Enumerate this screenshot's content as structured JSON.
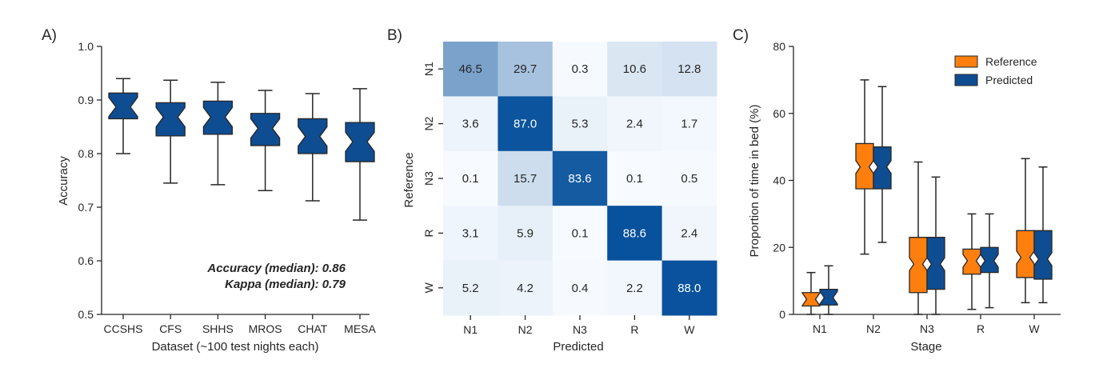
{
  "chart_data": [
    {
      "panel": "A)",
      "type": "box",
      "categories": [
        "CCSHS",
        "CFS",
        "SHHS",
        "MROS",
        "CHAT",
        "MESA"
      ],
      "xlabel": "Dataset (~100 test nights each)",
      "ylabel": "Accuracy",
      "ylim": [
        0.5,
        1.0
      ],
      "yticks": [
        "0.5",
        "0.6",
        "0.7",
        "0.8",
        "0.9",
        "1.0"
      ],
      "color": "#0f4d92",
      "boxes": [
        {
          "name": "CCSHS",
          "whisker_low": 0.8,
          "q1": 0.865,
          "median": 0.887,
          "q3": 0.913,
          "whisker_high": 0.94
        },
        {
          "name": "CFS",
          "whisker_low": 0.745,
          "q1": 0.833,
          "median": 0.868,
          "q3": 0.895,
          "whisker_high": 0.937
        },
        {
          "name": "SHHS",
          "whisker_low": 0.742,
          "q1": 0.836,
          "median": 0.868,
          "q3": 0.898,
          "whisker_high": 0.933
        },
        {
          "name": "MROS",
          "whisker_low": 0.731,
          "q1": 0.815,
          "median": 0.847,
          "q3": 0.875,
          "whisker_high": 0.918
        },
        {
          "name": "CHAT",
          "whisker_low": 0.712,
          "q1": 0.8,
          "median": 0.832,
          "q3": 0.865,
          "whisker_high": 0.912
        },
        {
          "name": "MESA",
          "whisker_low": 0.676,
          "q1": 0.785,
          "median": 0.822,
          "q3": 0.858,
          "whisker_high": 0.921
        }
      ],
      "annotations": [
        "Accuracy (median): 0.86",
        "Kappa (median): 0.79"
      ]
    },
    {
      "panel": "B)",
      "type": "heatmap",
      "xlabel": "Predicted",
      "ylabel": "Reference",
      "x_categories": [
        "N1",
        "N2",
        "N3",
        "R",
        "W"
      ],
      "y_categories": [
        "N1",
        "N2",
        "N3",
        "R",
        "W"
      ],
      "values": [
        [
          "46.5",
          "29.7",
          "0.3",
          "10.6",
          "12.8"
        ],
        [
          "3.6",
          "87.0",
          "5.3",
          "2.4",
          "1.7"
        ],
        [
          "0.1",
          "15.7",
          "83.6",
          "0.1",
          "0.5"
        ],
        [
          "3.1",
          "5.9",
          "0.1",
          "88.6",
          "2.4"
        ],
        [
          "5.2",
          "4.2",
          "0.4",
          "2.2",
          "88.0"
        ]
      ],
      "colormap": [
        "#f7fbff",
        "#08519c"
      ]
    },
    {
      "panel": "C)",
      "type": "box",
      "categories": [
        "N1",
        "N2",
        "N3",
        "R",
        "W"
      ],
      "xlabel": "Stage",
      "ylabel": "Proportion of time in bed (%)",
      "ylim": [
        0,
        80
      ],
      "yticks": [
        "0",
        "20",
        "40",
        "60",
        "80"
      ],
      "legend_position": "top-right",
      "series": [
        {
          "name": "Reference",
          "color": "#ff7f0e",
          "boxes": [
            {
              "whisker_low": 0.0,
              "q1": 2.5,
              "median": 4.5,
              "q3": 6.5,
              "whisker_high": 12.5
            },
            {
              "whisker_low": 18.0,
              "q1": 37.5,
              "median": 44.0,
              "q3": 51.0,
              "whisker_high": 70.0
            },
            {
              "whisker_low": 0.0,
              "q1": 6.5,
              "median": 15.0,
              "q3": 23.0,
              "whisker_high": 45.5
            },
            {
              "whisker_low": 1.5,
              "q1": 12.0,
              "median": 16.0,
              "q3": 19.5,
              "whisker_high": 30.0
            },
            {
              "whisker_low": 3.5,
              "q1": 11.0,
              "median": 17.0,
              "q3": 25.0,
              "whisker_high": 46.5
            }
          ]
        },
        {
          "name": "Predicted",
          "color": "#0f4d92",
          "boxes": [
            {
              "whisker_low": 0.0,
              "q1": 2.8,
              "median": 5.0,
              "q3": 7.5,
              "whisker_high": 14.5
            },
            {
              "whisker_low": 21.5,
              "q1": 37.5,
              "median": 44.0,
              "q3": 50.0,
              "whisker_high": 68.0
            },
            {
              "whisker_low": 0.0,
              "q1": 7.5,
              "median": 15.0,
              "q3": 23.0,
              "whisker_high": 41.0
            },
            {
              "whisker_low": 2.0,
              "q1": 12.5,
              "median": 16.0,
              "q3": 20.0,
              "whisker_high": 30.0
            },
            {
              "whisker_low": 3.5,
              "q1": 10.5,
              "median": 16.5,
              "q3": 25.0,
              "whisker_high": 44.0
            }
          ]
        }
      ]
    }
  ]
}
